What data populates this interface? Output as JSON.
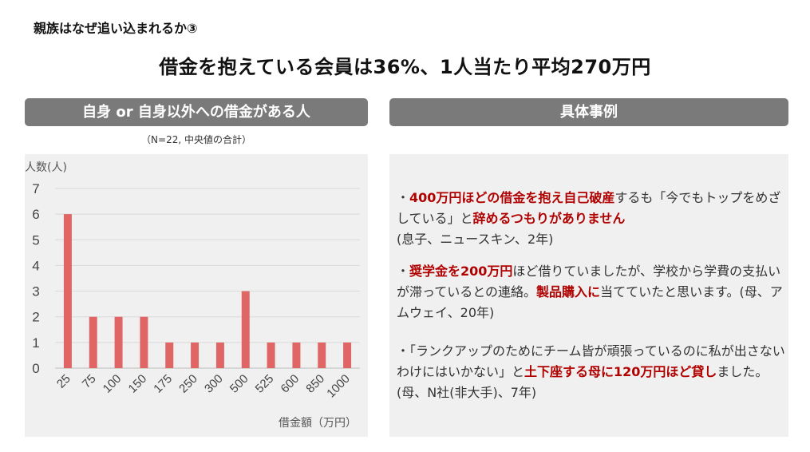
{
  "corner_title": "親族はなぜ追い込まれるか③",
  "headline": "借金を抱えている会員は36%、1人当たり平均270万円",
  "left_banner": "自身 or 自身以外への借金がある人",
  "right_banner": "具体事例",
  "chart_note": "（N=22, 中央値の合計）",
  "colors": {
    "bar": "#e06666",
    "banner": "#7a7a7a",
    "highlight": "#b00000",
    "panel": "#f0f0f0"
  },
  "chart_data": {
    "type": "bar",
    "categories": [
      "25",
      "75",
      "100",
      "150",
      "175",
      "250",
      "300",
      "500",
      "525",
      "600",
      "850",
      "1000"
    ],
    "values": [
      6,
      2,
      2,
      2,
      1,
      1,
      1,
      3,
      1,
      1,
      1,
      1
    ],
    "ylabel": "人数(人)",
    "xlabel": "借金額（万円）",
    "ylim": [
      0,
      7
    ],
    "yticks": [
      "0",
      "1",
      "2",
      "3",
      "4",
      "5",
      "6",
      "7"
    ],
    "grid": true,
    "legend": "none"
  },
  "examples": {
    "ex1": {
      "p1": "・",
      "h1": "400万円ほどの借金を抱え自己破産",
      "p2": "するも「今でもトップをめざしている」と",
      "h2": "辞めるつもりがありません",
      "p3": "(息子、ニュースキン、2年)"
    },
    "ex2": {
      "p1": "・",
      "h1": "奨学金を200万円",
      "p2": "ほど借りていましたが、学校から学費の支払いが滞っているとの連絡。",
      "h2": "製品購入に",
      "p3": "当てていたと思います。(母、アムウェイ、20年)"
    },
    "ex3": {
      "p1": "・「ランクアップのためにチーム皆が頑張っているのに私が出さないわけにはいかない」と",
      "h1": "土下座する母に120万円ほど貸し",
      "p2": "ました。(母、N社(非大手)、7年)"
    }
  }
}
